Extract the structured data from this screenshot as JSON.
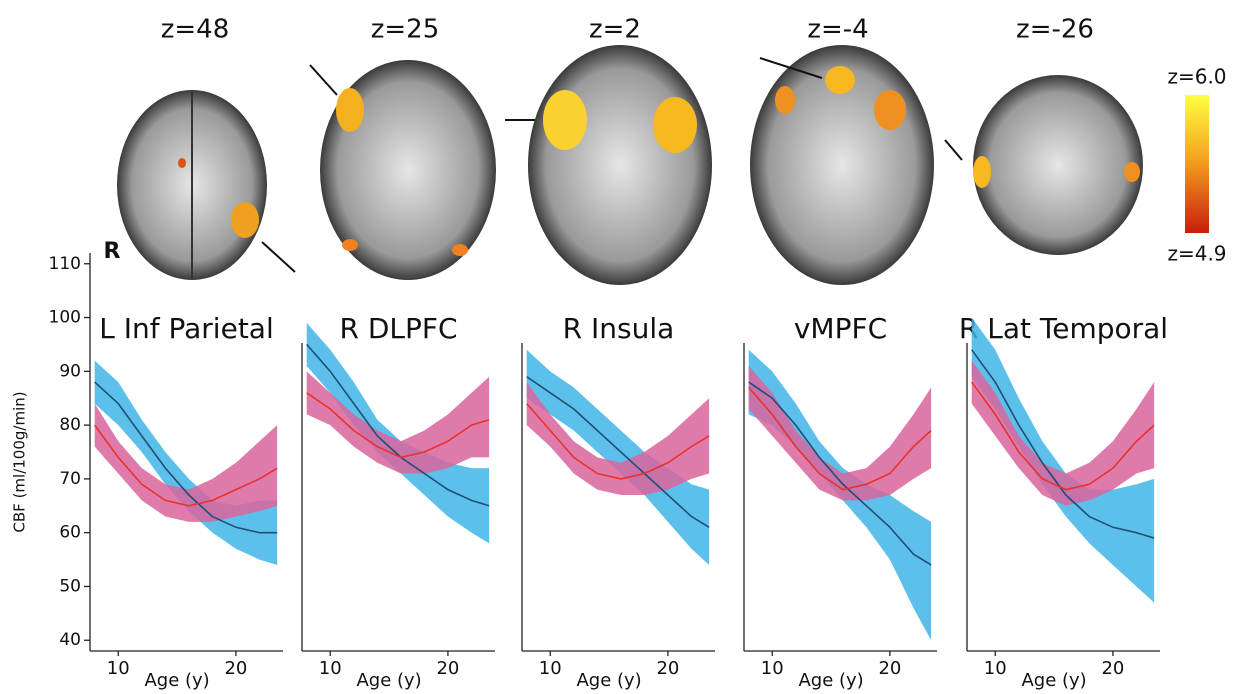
{
  "brain_slices": {
    "labels": [
      "z=48",
      "z=25",
      "z=2",
      "z=-4",
      "z=-26"
    ],
    "side_label": "R"
  },
  "colorbar": {
    "max_label": "z=6.0",
    "min_label": "z=4.9"
  },
  "chart_data": [
    {
      "type": "line",
      "title": "L Inf Parietal",
      "ylabel": "CBF (ml/100g/min)",
      "xlabel": "Age (y)",
      "x": [
        8,
        10,
        12,
        14,
        16,
        18,
        20,
        22,
        23.5
      ],
      "xlim": [
        7.6,
        24
      ],
      "xticks": [
        10,
        20
      ],
      "ylim": [
        38,
        112
      ],
      "yticks": [
        40,
        50,
        60,
        70,
        80,
        90,
        100,
        110
      ],
      "series": [
        {
          "color": "#1f4e79",
          "band_color": "#3fb5e8",
          "values": [
            88,
            84,
            78,
            72,
            67,
            63,
            61,
            60,
            60
          ],
          "lower": [
            84,
            80,
            75,
            69,
            64,
            60,
            57,
            55,
            54
          ],
          "upper": [
            92,
            88,
            81,
            75,
            70,
            66,
            65,
            66,
            66
          ]
        },
        {
          "color": "#e8322b",
          "band_color": "#d9649c",
          "values": [
            80,
            74,
            69,
            66,
            65,
            66,
            68,
            70,
            72
          ],
          "lower": [
            76,
            71,
            66,
            63,
            62,
            62,
            63,
            64,
            65
          ],
          "upper": [
            84,
            77,
            72,
            69,
            68,
            70,
            73,
            77,
            80
          ]
        }
      ]
    },
    {
      "type": "line",
      "title": "R DLPFC",
      "xlabel": "Age (y)",
      "x": [
        8,
        10,
        12,
        14,
        16,
        18,
        20,
        22,
        23.5
      ],
      "xlim": [
        7.6,
        24
      ],
      "xticks": [
        10,
        20
      ],
      "ylim": [
        38,
        112
      ],
      "series": [
        {
          "color": "#1f4e79",
          "band_color": "#3fb5e8",
          "values": [
            95,
            90,
            84,
            78,
            74,
            71,
            68,
            66,
            65
          ],
          "lower": [
            91,
            86,
            80,
            75,
            71,
            67,
            63,
            60,
            58
          ],
          "upper": [
            99,
            94,
            88,
            81,
            77,
            75,
            73,
            72,
            72
          ]
        },
        {
          "color": "#e8322b",
          "band_color": "#d9649c",
          "values": [
            86,
            83,
            79,
            76,
            74,
            75,
            77,
            80,
            81
          ],
          "lower": [
            82,
            80,
            76,
            73,
            71,
            71,
            72,
            74,
            74
          ],
          "upper": [
            90,
            86,
            82,
            79,
            77,
            79,
            82,
            86,
            89
          ]
        }
      ]
    },
    {
      "type": "line",
      "title": "R Insula",
      "xlabel": "Age (y)",
      "x": [
        8,
        10,
        12,
        14,
        16,
        18,
        20,
        22,
        23.5
      ],
      "xlim": [
        7.6,
        24
      ],
      "xticks": [
        10,
        20
      ],
      "ylim": [
        38,
        112
      ],
      "series": [
        {
          "color": "#1f4e79",
          "band_color": "#3fb5e8",
          "values": [
            89,
            86,
            83,
            79,
            75,
            71,
            67,
            63,
            61
          ],
          "lower": [
            85,
            82,
            79,
            75,
            71,
            67,
            62,
            57,
            54
          ],
          "upper": [
            94,
            90,
            87,
            83,
            79,
            75,
            72,
            69,
            68
          ]
        },
        {
          "color": "#e8322b",
          "band_color": "#d9649c",
          "values": [
            84,
            79,
            74,
            71,
            70,
            71,
            73,
            76,
            78
          ],
          "lower": [
            80,
            76,
            71,
            68,
            67,
            67,
            68,
            70,
            71
          ],
          "upper": [
            88,
            82,
            77,
            74,
            73,
            75,
            78,
            82,
            85
          ]
        }
      ]
    },
    {
      "type": "line",
      "title": "vMPFC",
      "xlabel": "Age (y)",
      "x": [
        8,
        10,
        12,
        14,
        16,
        18,
        20,
        22,
        23.5
      ],
      "xlim": [
        7.6,
        24
      ],
      "xticks": [
        10,
        20
      ],
      "ylim": [
        38,
        112
      ],
      "series": [
        {
          "color": "#1f4e79",
          "band_color": "#3fb5e8",
          "values": [
            88,
            85,
            80,
            74,
            69,
            65,
            61,
            56,
            54
          ],
          "lower": [
            82,
            80,
            76,
            71,
            66,
            61,
            55,
            46,
            40
          ],
          "upper": [
            94,
            90,
            84,
            77,
            72,
            69,
            67,
            64,
            62
          ]
        },
        {
          "color": "#e8322b",
          "band_color": "#d9649c",
          "values": [
            87,
            82,
            76,
            71,
            68,
            69,
            71,
            76,
            79
          ],
          "lower": [
            83,
            78,
            73,
            68,
            66,
            66,
            67,
            70,
            72
          ],
          "upper": [
            91,
            86,
            79,
            74,
            71,
            72,
            76,
            82,
            87
          ]
        }
      ]
    },
    {
      "type": "line",
      "title": "R Lat Temporal",
      "xlabel": "Age (y)",
      "x": [
        8,
        10,
        12,
        14,
        16,
        18,
        20,
        22,
        23.5
      ],
      "xlim": [
        7.6,
        24
      ],
      "xticks": [
        10,
        20
      ],
      "ylim": [
        38,
        112
      ],
      "series": [
        {
          "color": "#1f4e79",
          "band_color": "#3fb5e8",
          "values": [
            94,
            88,
            80,
            73,
            67,
            63,
            61,
            60,
            59
          ],
          "lower": [
            89,
            83,
            76,
            69,
            63,
            58,
            54,
            50,
            47
          ],
          "upper": [
            100,
            94,
            85,
            77,
            71,
            68,
            68,
            69,
            70
          ]
        },
        {
          "color": "#e8322b",
          "band_color": "#d9649c",
          "values": [
            88,
            82,
            75,
            70,
            68,
            69,
            72,
            77,
            80
          ],
          "lower": [
            84,
            78,
            72,
            67,
            65,
            66,
            68,
            71,
            72
          ],
          "upper": [
            92,
            86,
            78,
            73,
            71,
            73,
            77,
            83,
            88
          ]
        }
      ]
    }
  ]
}
